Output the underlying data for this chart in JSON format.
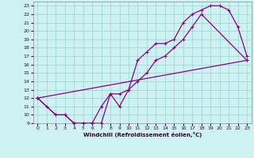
{
  "background_color": "#cef2f2",
  "line_color": "#880088",
  "grid_color": "#a0d8d8",
  "xlim": [
    -0.5,
    23.5
  ],
  "ylim": [
    9,
    23.5
  ],
  "xlabel": "Windchill (Refroidissement éolien,°C)",
  "xticks": [
    0,
    1,
    2,
    3,
    4,
    5,
    6,
    7,
    8,
    9,
    10,
    11,
    12,
    13,
    14,
    15,
    16,
    17,
    18,
    19,
    20,
    21,
    22,
    23
  ],
  "yticks": [
    9,
    10,
    11,
    12,
    13,
    14,
    15,
    16,
    17,
    18,
    19,
    20,
    21,
    22,
    23
  ],
  "curve1_x": [
    0,
    1,
    2,
    3,
    4,
    5,
    6,
    7,
    8,
    9,
    10,
    11,
    12,
    13,
    14,
    15,
    16,
    17,
    18,
    19,
    20,
    21,
    22,
    23
  ],
  "curve1_y": [
    12,
    11,
    10,
    10,
    9,
    9,
    9,
    9,
    12.5,
    11,
    13,
    16.5,
    17.5,
    18.5,
    18.5,
    19,
    21,
    22,
    22.5,
    23,
    23,
    22.5,
    20.5,
    17
  ],
  "curve2_x": [
    0,
    2,
    3,
    4,
    5,
    6,
    7,
    8,
    9,
    10,
    11,
    12,
    13,
    14,
    15,
    16,
    17,
    18,
    23
  ],
  "curve2_y": [
    12,
    10,
    10,
    9,
    9,
    9,
    11,
    12.5,
    12.5,
    13,
    14,
    15,
    16.5,
    17,
    18,
    19,
    20.5,
    22,
    16.5
  ],
  "curve3_x": [
    0,
    23
  ],
  "curve3_y": [
    12,
    16.5
  ]
}
